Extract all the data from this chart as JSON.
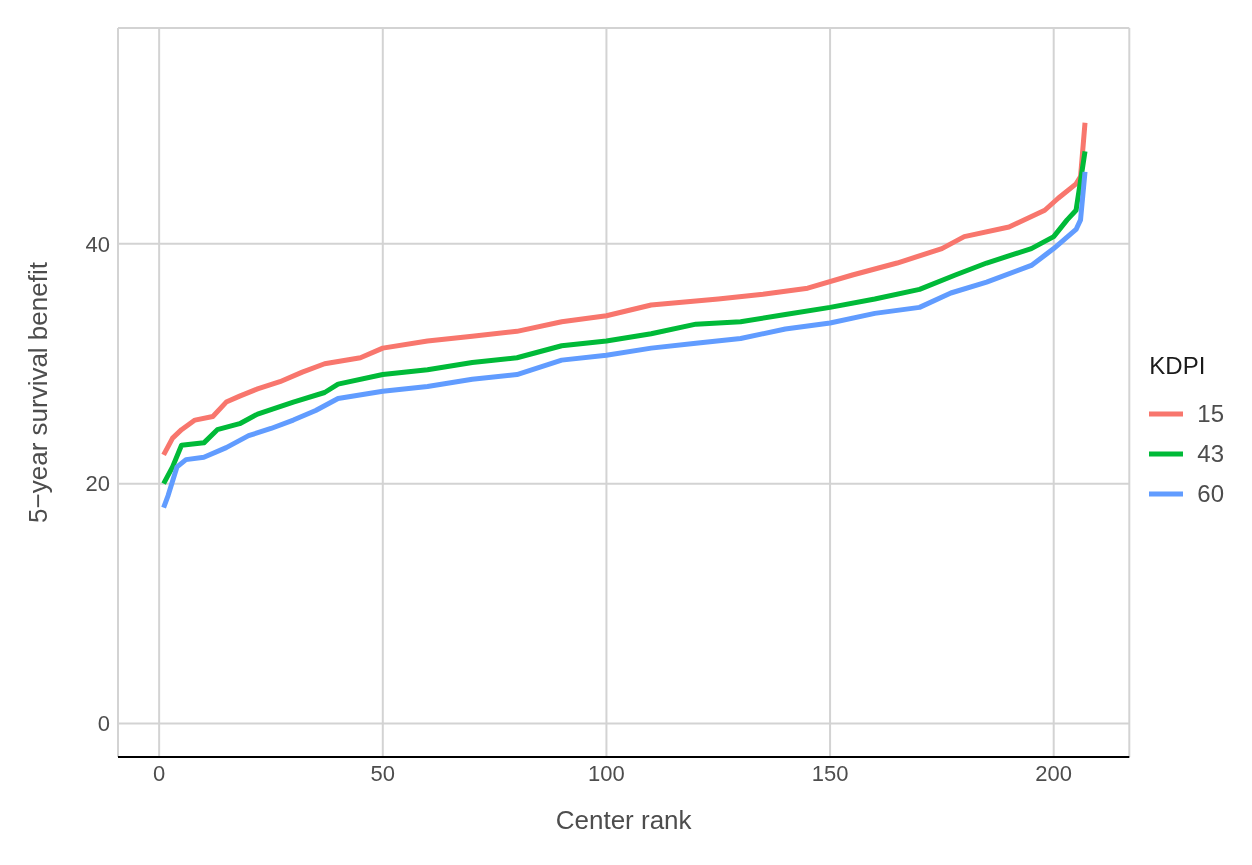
{
  "chart_data": {
    "type": "line",
    "xlabel": "Center rank",
    "ylabel": "5−year survival benefit",
    "legend_title": "KDPI",
    "legend": "right",
    "grid": true,
    "line_style": "solid",
    "marker": "none",
    "xlim": [
      -9.2,
      216.9
    ],
    "ylim": [
      -2.8,
      58
    ],
    "xticks": [
      0,
      50,
      100,
      150,
      200
    ],
    "yticks": [
      0,
      20,
      40
    ],
    "series": [
      {
        "name": "15",
        "color": "#f8766d",
        "x": [
          1,
          3,
          5,
          8,
          12,
          15,
          18,
          22,
          27,
          32,
          37,
          45,
          50,
          60,
          70,
          80,
          90,
          100,
          110,
          125,
          135,
          145,
          155,
          165,
          175,
          180,
          190,
          198,
          201,
          205,
          206,
          207
        ],
        "values": [
          22.4,
          23.8,
          24.5,
          25.3,
          25.6,
          26.8,
          27.3,
          27.9,
          28.5,
          29.3,
          30.0,
          30.5,
          31.3,
          31.9,
          32.3,
          32.7,
          33.5,
          34.0,
          34.9,
          35.4,
          35.8,
          36.3,
          37.4,
          38.4,
          39.6,
          40.6,
          41.4,
          42.8,
          43.8,
          45.0,
          45.6,
          50.1
        ]
      },
      {
        "name": "43",
        "color": "#00ba38",
        "x": [
          1,
          3,
          5,
          10,
          13,
          18,
          22,
          30,
          37,
          40,
          50,
          60,
          70,
          80,
          90,
          100,
          110,
          120,
          130,
          140,
          150,
          160,
          170,
          178,
          185,
          195,
          200,
          203,
          205,
          207
        ],
        "values": [
          20.0,
          21.4,
          23.2,
          23.4,
          24.5,
          25.0,
          25.8,
          26.8,
          27.6,
          28.3,
          29.1,
          29.5,
          30.1,
          30.5,
          31.5,
          31.9,
          32.5,
          33.3,
          33.5,
          34.1,
          34.7,
          35.4,
          36.2,
          37.4,
          38.4,
          39.6,
          40.6,
          42.0,
          42.8,
          47.7
        ]
      },
      {
        "name": "60",
        "color": "#619cff",
        "x": [
          1,
          2,
          4,
          6,
          10,
          15,
          20,
          25,
          30,
          35,
          40,
          50,
          60,
          70,
          80,
          90,
          100,
          110,
          120,
          130,
          140,
          150,
          160,
          170,
          177,
          185,
          195,
          200,
          205,
          206,
          207
        ],
        "values": [
          18.0,
          19.0,
          21.4,
          22.0,
          22.2,
          23.0,
          24.0,
          24.6,
          25.3,
          26.1,
          27.1,
          27.7,
          28.1,
          28.7,
          29.1,
          30.3,
          30.7,
          31.3,
          31.7,
          32.1,
          32.9,
          33.4,
          34.2,
          34.7,
          35.9,
          36.8,
          38.2,
          39.6,
          41.2,
          42.0,
          46.0
        ]
      }
    ]
  }
}
